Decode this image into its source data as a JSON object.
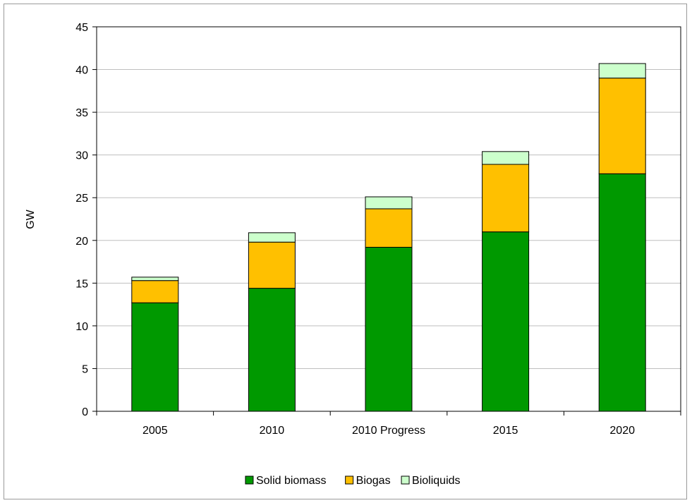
{
  "chart_data": {
    "type": "bar",
    "stacked": true,
    "title": "",
    "xlabel": "",
    "ylabel": "GW",
    "ylim": [
      0,
      45
    ],
    "ytick_step": 5,
    "grid": true,
    "legend_position": "bottom",
    "categories": [
      "2005",
      "2010",
      "2010 Progress",
      "2015",
      "2020"
    ],
    "series": [
      {
        "name": "Solid biomass",
        "color": "#009900",
        "values": [
          12.7,
          14.4,
          19.2,
          21.0,
          27.8
        ]
      },
      {
        "name": "Biogas",
        "color": "#FFC000",
        "values": [
          2.6,
          5.4,
          4.5,
          7.9,
          11.2
        ]
      },
      {
        "name": "Bioliquids",
        "color": "#CCFFCC",
        "values": [
          0.4,
          1.1,
          1.4,
          1.5,
          1.7
        ]
      }
    ]
  }
}
